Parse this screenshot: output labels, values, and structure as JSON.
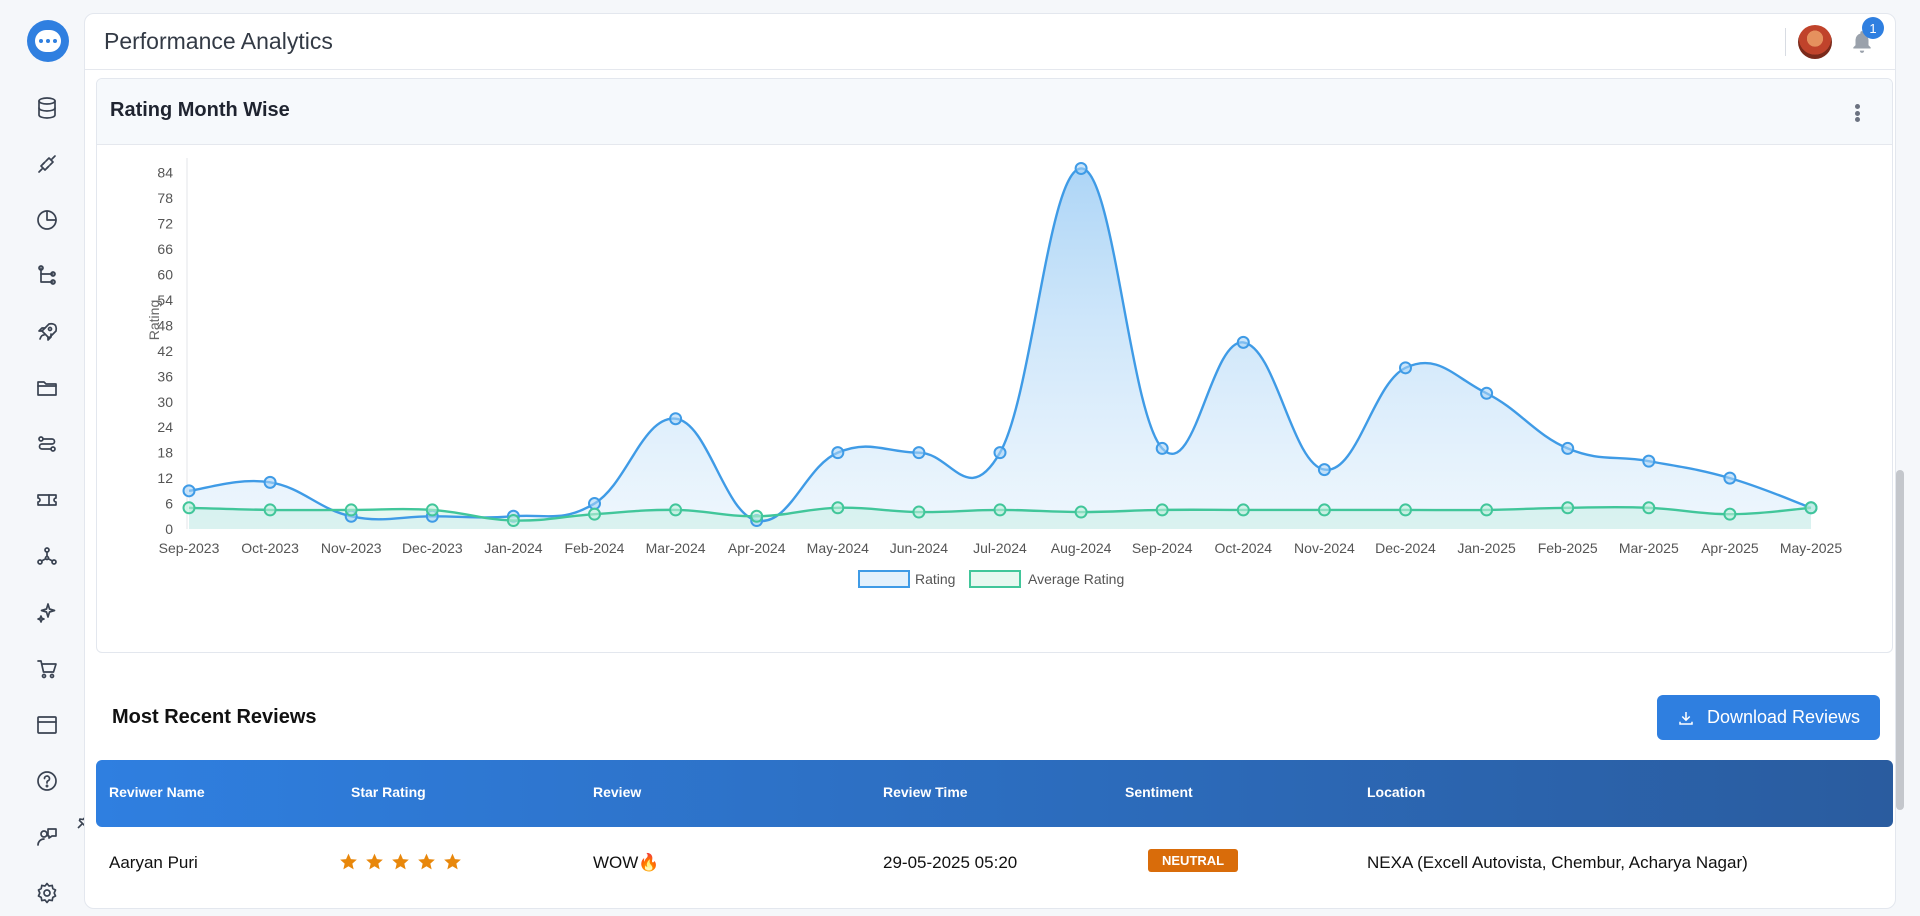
{
  "app": {
    "page_title": "Performance Analytics",
    "notification_count": "1"
  },
  "sidebar": {
    "items": [
      "database-icon",
      "plug-icon",
      "pie-chart-icon",
      "hierarchy-icon",
      "rocket-icon",
      "folder-icon",
      "workflow-icon",
      "ticket-icon",
      "network-icon",
      "sparkle-icon",
      "cart-icon",
      "window-icon",
      "help-icon",
      "feedback-icon",
      "settings-icon"
    ]
  },
  "chart_card": {
    "title": "Rating Month Wise"
  },
  "chart_data": {
    "type": "area",
    "ylabel": "Rating",
    "ylim": [
      0,
      87
    ],
    "yticks": [
      0,
      6,
      12,
      18,
      24,
      30,
      36,
      42,
      48,
      54,
      60,
      66,
      72,
      78,
      84
    ],
    "categories": [
      "Sep-2023",
      "Oct-2023",
      "Nov-2023",
      "Dec-2023",
      "Jan-2024",
      "Feb-2024",
      "Mar-2024",
      "Apr-2024",
      "May-2024",
      "Jun-2024",
      "Jul-2024",
      "Aug-2024",
      "Sep-2024",
      "Oct-2024",
      "Nov-2024",
      "Dec-2024",
      "Jan-2025",
      "Feb-2025",
      "Mar-2025",
      "Apr-2025",
      "May-2025"
    ],
    "series": [
      {
        "name": "Rating",
        "color": "#3f9be6",
        "values": [
          9,
          11,
          3,
          3,
          3,
          6,
          26,
          2,
          18,
          18,
          18,
          85,
          19,
          44,
          14,
          38,
          32,
          19,
          16,
          12,
          5
        ]
      },
      {
        "name": "Average Rating",
        "color": "#41c69a",
        "values": [
          5,
          4.5,
          4.5,
          4.5,
          2,
          3.5,
          4.5,
          3,
          5,
          4,
          4.5,
          4,
          4.5,
          4.5,
          4.5,
          4.5,
          4.5,
          5,
          5,
          3.5,
          5
        ]
      }
    ],
    "legend": "bottom-center"
  },
  "reviews": {
    "title": "Most Recent Reviews",
    "download_label": "Download Reviews",
    "columns": [
      "Reviwer Name",
      "Star Rating",
      "Review",
      "Review Time",
      "Sentiment",
      "Location"
    ],
    "rows": [
      {
        "name": "Aaryan Puri",
        "stars": 5,
        "review": "WOW🔥",
        "time": "29-05-2025 05:20",
        "sentiment": "NEUTRAL",
        "location": "NEXA (Excell Autovista, Chembur, Acharya Nagar)"
      }
    ]
  },
  "colors": {
    "accent": "#2f7fe0",
    "header_gradient_end": "#2a5c9f",
    "sentiment_neutral": "#d96c0a",
    "star": "#e8870b"
  }
}
